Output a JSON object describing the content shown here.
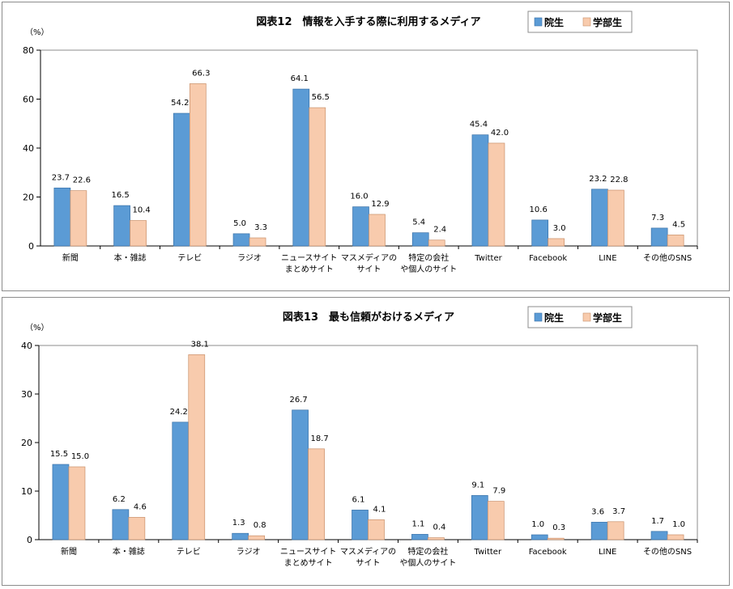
{
  "colors": {
    "grad": "#5b9bd5",
    "undergrad": "#f8cbad",
    "grad_stroke": "#3a72a8",
    "undergrad_stroke": "#c9906a"
  },
  "chart_data": [
    {
      "type": "bar",
      "title": "図表12　情報を入手する際に利用するメディア",
      "unit": "（%）",
      "categories": [
        [
          "新聞"
        ],
        [
          "本・雑誌"
        ],
        [
          "テレビ"
        ],
        [
          "ラジオ"
        ],
        [
          "ニュースサイト",
          "まとめサイト"
        ],
        [
          "マスメディアの",
          "サイト"
        ],
        [
          "特定の会社",
          "や個人のサイト"
        ],
        [
          "Twitter"
        ],
        [
          "Facebook"
        ],
        [
          "LINE"
        ],
        [
          "その他のSNS"
        ]
      ],
      "series": [
        {
          "name": "院生",
          "values": [
            23.7,
            16.5,
            54.2,
            5.0,
            64.1,
            16.0,
            5.4,
            45.4,
            10.6,
            23.2,
            7.3
          ]
        },
        {
          "name": "学部生",
          "values": [
            22.6,
            10.4,
            66.3,
            3.3,
            56.5,
            12.9,
            2.4,
            42.0,
            3.0,
            22.8,
            4.5
          ]
        }
      ],
      "ylim": [
        0,
        80
      ],
      "yticks": [
        0,
        20,
        40,
        60,
        80
      ],
      "legend": "top-right"
    },
    {
      "type": "bar",
      "title": "図表13　最も信頼がおけるメディア",
      "unit": "（%）",
      "categories": [
        [
          "新聞"
        ],
        [
          "本・雑誌"
        ],
        [
          "テレビ"
        ],
        [
          "ラジオ"
        ],
        [
          "ニュースサイト",
          "まとめサイト"
        ],
        [
          "マスメディアの",
          "サイト"
        ],
        [
          "特定の会社",
          "や個人のサイト"
        ],
        [
          "Twitter"
        ],
        [
          "Facebook"
        ],
        [
          "LINE"
        ],
        [
          "その他のSNS"
        ]
      ],
      "series": [
        {
          "name": "院生",
          "values": [
            15.5,
            6.2,
            24.2,
            1.3,
            26.7,
            6.1,
            1.1,
            9.1,
            1.0,
            3.6,
            1.7
          ]
        },
        {
          "name": "学部生",
          "values": [
            15.0,
            4.6,
            38.1,
            0.8,
            18.7,
            4.1,
            0.4,
            7.9,
            0.3,
            3.7,
            1.0
          ]
        }
      ],
      "ylim": [
        0,
        40
      ],
      "yticks": [
        0,
        10,
        20,
        30,
        40
      ],
      "legend": "top-right"
    }
  ]
}
